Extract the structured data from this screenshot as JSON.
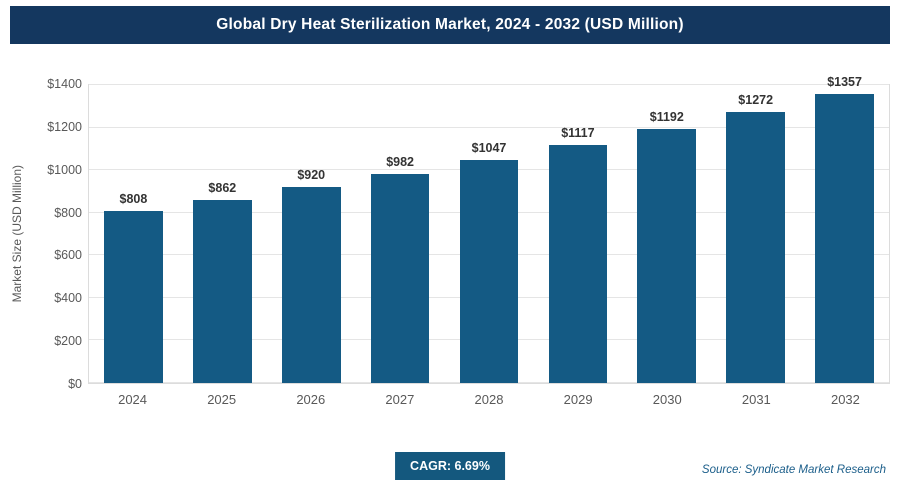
{
  "title": "Global Dry Heat Sterilization Market, 2024 - 2032 (USD Million)",
  "y_axis_title": "Market Size (USD Million)",
  "cagr_badge": "CAGR: 6.69%",
  "source_text": "Source: Syndicate Market Research",
  "colors": {
    "title_bg": "#14375F",
    "bar": "#145A84",
    "badge_bg": "#14587E",
    "grid": "#E5E5E5",
    "axis_text": "#595959",
    "value_label": "#333333",
    "source_text": "#1B5E8A"
  },
  "chart_data": {
    "type": "bar",
    "title": "Global Dry Heat Sterilization Market, 2024 - 2032 (USD Million)",
    "categories": [
      "2024",
      "2025",
      "2026",
      "2027",
      "2028",
      "2029",
      "2030",
      "2031",
      "2032"
    ],
    "values": [
      808,
      862,
      920,
      982,
      1047,
      1117,
      1192,
      1272,
      1357
    ],
    "value_prefix": "$",
    "xlabel": "",
    "ylabel": "Market Size (USD Million)",
    "ylim": [
      0,
      1400
    ],
    "ytick_step": 200,
    "grid": true,
    "legend": false,
    "bar_color": "#145A84",
    "annotations": [
      "CAGR: 6.69%"
    ]
  }
}
